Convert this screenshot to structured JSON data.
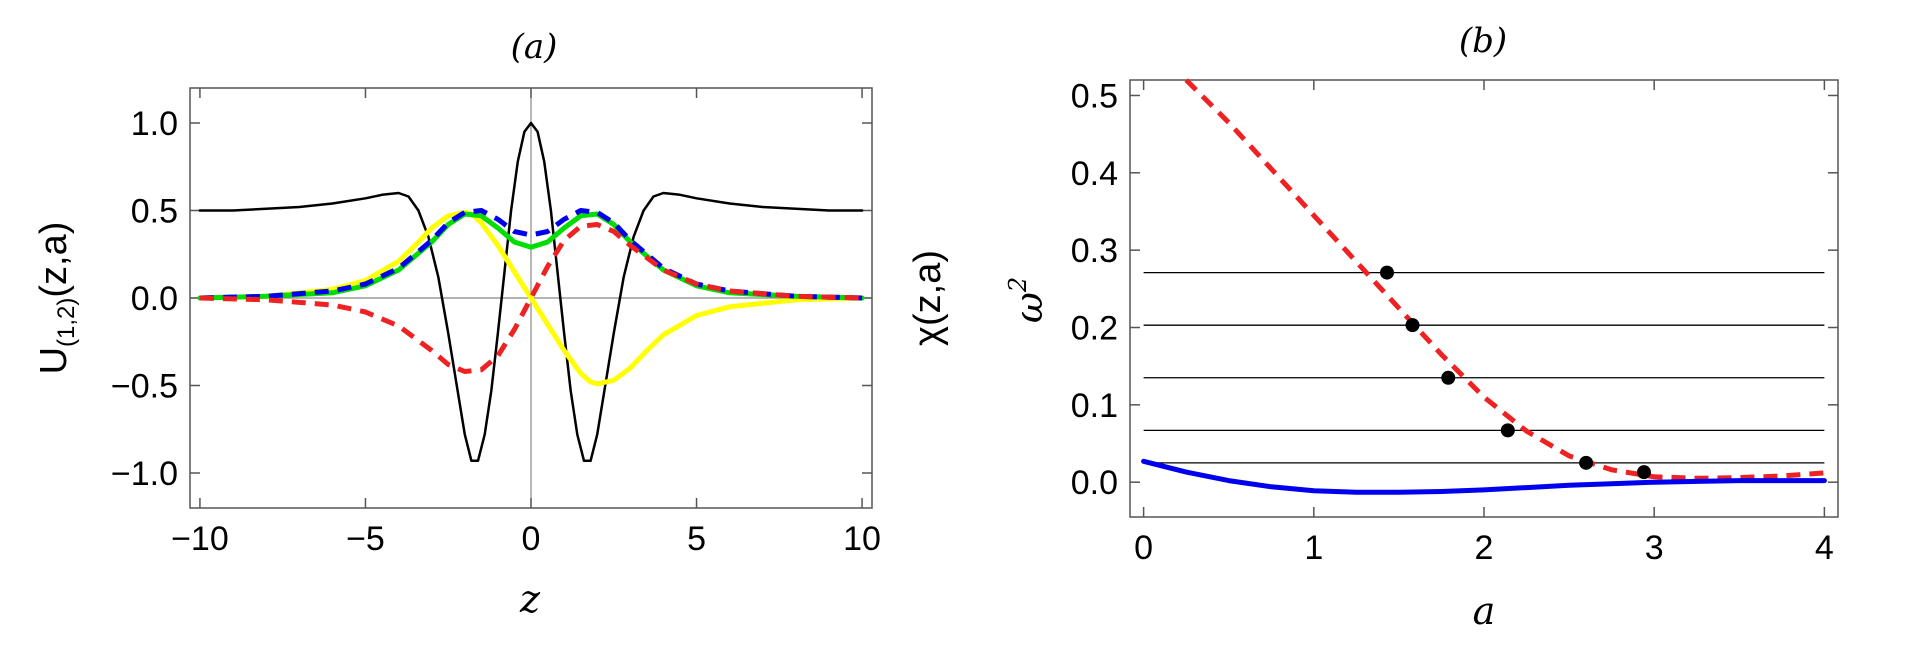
{
  "chart_data": [
    {
      "id": "a",
      "type": "line",
      "title": "(a)",
      "xlabel": "z",
      "ylabel_main": "U",
      "ylabel_sub": "(1,2)",
      "ylabel_args": "(z,a)",
      "ylabel_right": "χ(z,a)",
      "xlim": [
        -10.3,
        10.3
      ],
      "ylim": [
        -1.2,
        1.2
      ],
      "xticks": [
        -10,
        -5,
        0,
        5,
        10
      ],
      "xtick_labels": [
        "−10",
        "−5",
        "0",
        "5",
        "10"
      ],
      "yticks": [
        -1.0,
        -0.5,
        0.0,
        0.5,
        1.0
      ],
      "ytick_labels": [
        "−1.0",
        "−0.5",
        "0.0",
        "0.5",
        "1.0"
      ],
      "series": [
        {
          "name": "black",
          "color": "#000000",
          "dash": "solid",
          "x": [
            -10,
            -9,
            -8,
            -7,
            -6,
            -5,
            -4.5,
            -4,
            -3.7,
            -3.4,
            -3.1,
            -2.8,
            -2.5,
            -2.2,
            -2.0,
            -1.8,
            -1.6,
            -1.4,
            -1.2,
            -1.0,
            -0.8,
            -0.6,
            -0.4,
            -0.2,
            0,
            0.2,
            0.4,
            0.6,
            0.8,
            1.0,
            1.2,
            1.4,
            1.6,
            1.8,
            2.0,
            2.2,
            2.5,
            2.8,
            3.1,
            3.4,
            3.7,
            4,
            4.5,
            5,
            6,
            7,
            8,
            9,
            10
          ],
          "y": [
            0.5,
            0.5,
            0.51,
            0.52,
            0.54,
            0.57,
            0.59,
            0.6,
            0.58,
            0.5,
            0.35,
            0.12,
            -0.2,
            -0.55,
            -0.78,
            -0.93,
            -0.93,
            -0.78,
            -0.53,
            -0.2,
            0.15,
            0.5,
            0.78,
            0.95,
            1.0,
            0.95,
            0.78,
            0.5,
            0.15,
            -0.2,
            -0.53,
            -0.78,
            -0.93,
            -0.93,
            -0.78,
            -0.55,
            -0.2,
            0.12,
            0.35,
            0.5,
            0.58,
            0.6,
            0.59,
            0.57,
            0.54,
            0.52,
            0.51,
            0.5,
            0.5
          ]
        },
        {
          "name": "yellow",
          "color": "#ffff00",
          "dash": "solid",
          "x": [
            -10,
            -8,
            -6,
            -5,
            -4,
            -3.5,
            -3,
            -2.5,
            -2,
            -1.8,
            -1.5,
            -1,
            -0.5,
            0,
            0.5,
            1,
            1.5,
            1.8,
            2,
            2.5,
            3,
            3.5,
            4,
            5,
            6,
            8,
            10
          ],
          "y": [
            0.0,
            0.01,
            0.05,
            0.1,
            0.21,
            0.3,
            0.4,
            0.47,
            0.49,
            0.48,
            0.43,
            0.3,
            0.15,
            0.0,
            -0.15,
            -0.3,
            -0.43,
            -0.48,
            -0.49,
            -0.47,
            -0.4,
            -0.3,
            -0.21,
            -0.1,
            -0.05,
            -0.01,
            0.0
          ]
        },
        {
          "name": "green",
          "color": "#00dd00",
          "dash": "solid",
          "x": [
            -10,
            -8,
            -6,
            -5,
            -4,
            -3,
            -2.5,
            -2,
            -1.5,
            -1,
            -0.5,
            0,
            0.5,
            1,
            1.5,
            2,
            2.5,
            3,
            4,
            5,
            6,
            8,
            10
          ],
          "y": [
            0.0,
            0.01,
            0.03,
            0.07,
            0.16,
            0.32,
            0.42,
            0.48,
            0.47,
            0.4,
            0.32,
            0.29,
            0.32,
            0.4,
            0.47,
            0.48,
            0.42,
            0.32,
            0.16,
            0.07,
            0.03,
            0.01,
            0.0
          ]
        },
        {
          "name": "blue",
          "color": "#0000ee",
          "dash": "dash",
          "x": [
            -10,
            -8,
            -6,
            -5,
            -4,
            -3,
            -2.5,
            -2,
            -1.5,
            -1,
            -0.5,
            0,
            0.5,
            1,
            1.5,
            2,
            2.5,
            3,
            4,
            5,
            6,
            8,
            10
          ],
          "y": [
            0.0,
            0.01,
            0.04,
            0.08,
            0.17,
            0.33,
            0.43,
            0.49,
            0.5,
            0.45,
            0.38,
            0.36,
            0.38,
            0.45,
            0.5,
            0.49,
            0.43,
            0.33,
            0.17,
            0.08,
            0.04,
            0.01,
            0.0
          ]
        },
        {
          "name": "red",
          "color": "#ee2222",
          "dash": "dash",
          "x": [
            -10,
            -8,
            -6,
            -5,
            -4,
            -3,
            -2.5,
            -2,
            -1.5,
            -1,
            -0.5,
            0,
            0.5,
            1,
            1.5,
            2,
            2.5,
            3,
            4,
            5,
            6,
            8,
            10
          ],
          "y": [
            0.0,
            -0.01,
            -0.04,
            -0.08,
            -0.16,
            -0.3,
            -0.38,
            -0.42,
            -0.41,
            -0.33,
            -0.18,
            0.0,
            0.18,
            0.33,
            0.41,
            0.42,
            0.38,
            0.3,
            0.16,
            0.08,
            0.04,
            0.01,
            0.0
          ]
        }
      ]
    },
    {
      "id": "b",
      "type": "line",
      "title": "(b)",
      "xlabel": "a",
      "ylabel": "ω",
      "ylabel_sup": "2",
      "xlim": [
        -0.08,
        4.08
      ],
      "ylim": [
        -0.045,
        0.52
      ],
      "xticks": [
        0,
        1,
        2,
        3,
        4
      ],
      "xtick_labels": [
        "0",
        "1",
        "2",
        "3",
        "4"
      ],
      "yticks": [
        0.0,
        0.1,
        0.2,
        0.3,
        0.4,
        0.5
      ],
      "ytick_labels": [
        "0.0",
        "0.1",
        "0.2",
        "0.3",
        "0.4",
        "0.5"
      ],
      "hlines": [
        0.271,
        0.203,
        0.135,
        0.067,
        0.025
      ],
      "hline_xrange": [
        0,
        4
      ],
      "points": {
        "x": [
          1.43,
          1.58,
          1.79,
          2.14,
          2.6,
          2.94
        ],
        "y": [
          0.271,
          0.203,
          0.135,
          0.067,
          0.025,
          0.013
        ]
      },
      "series": [
        {
          "name": "red",
          "color": "#ee2222",
          "dash": "dash",
          "x": [
            0.25,
            0.5,
            0.75,
            1.0,
            1.25,
            1.5,
            1.75,
            2.0,
            2.25,
            2.5,
            2.75,
            3.0,
            3.25,
            3.5,
            3.75,
            4.0
          ],
          "y": [
            0.52,
            0.465,
            0.405,
            0.345,
            0.285,
            0.225,
            0.165,
            0.11,
            0.066,
            0.034,
            0.016,
            0.007,
            0.005,
            0.006,
            0.008,
            0.012
          ]
        },
        {
          "name": "blue",
          "color": "#0000ee",
          "dash": "solid",
          "x": [
            0,
            0.25,
            0.5,
            0.75,
            1.0,
            1.25,
            1.5,
            1.75,
            2.0,
            2.25,
            2.5,
            2.75,
            3.0,
            3.25,
            3.5,
            3.75,
            4.0
          ],
          "y": [
            0.027,
            0.013,
            0.002,
            -0.006,
            -0.011,
            -0.013,
            -0.013,
            -0.012,
            -0.01,
            -0.007,
            -0.004,
            -0.002,
            0.0,
            0.001,
            0.002,
            0.002,
            0.002
          ]
        }
      ]
    }
  ]
}
